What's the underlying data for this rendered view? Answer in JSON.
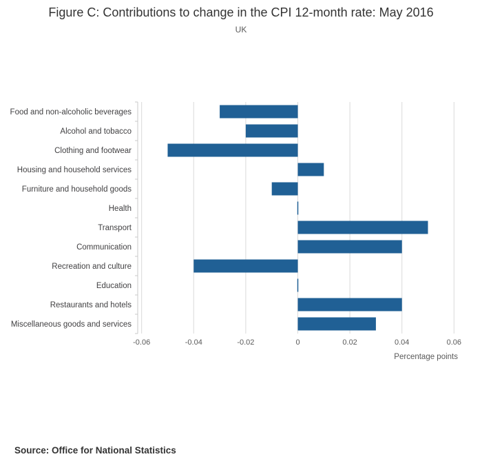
{
  "header": {
    "title": "Figure C: Contributions to change in the CPI 12-month rate: May 2016",
    "subtitle": "UK"
  },
  "footer": {
    "source": "Source: Office for National Statistics"
  },
  "chart_data": {
    "type": "bar",
    "orientation": "horizontal",
    "title": "Figure C: Contributions to change in the CPI 12-month rate: May 2016",
    "subtitle": "UK",
    "xlabel": "Percentage points",
    "ylabel": "",
    "xlim": [
      -0.06,
      0.06
    ],
    "xticks": [
      -0.06,
      -0.04,
      -0.02,
      0,
      0.02,
      0.04,
      0.06
    ],
    "xtick_labels": [
      "-0.06",
      "-0.04",
      "-0.02",
      "0",
      "0.02",
      "0.04",
      "0.06"
    ],
    "grid": true,
    "legend": "none",
    "bar_color": "#206095",
    "categories": [
      "Food and non-alcoholic beverages",
      "Alcohol and tobacco",
      "Clothing and footwear",
      "Housing and household services",
      "Furniture and household goods",
      "Health",
      "Transport",
      "Communication",
      "Recreation and culture",
      "Education",
      "Restaurants and hotels",
      "Miscellaneous goods and services"
    ],
    "values": [
      -0.03,
      -0.02,
      -0.05,
      0.01,
      -0.01,
      0,
      0.05,
      0.04,
      -0.04,
      0,
      0.04,
      0.03
    ]
  }
}
